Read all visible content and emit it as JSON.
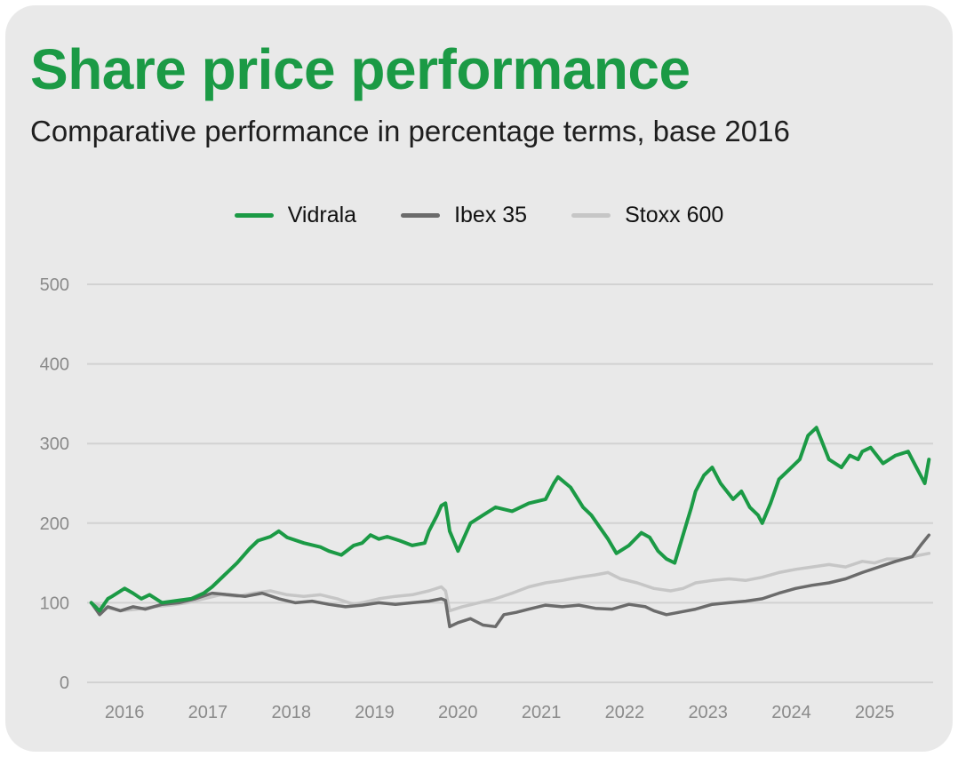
{
  "chart_data": {
    "type": "line",
    "title": "Share price performance",
    "subtitle": "Comparative performance in percentage terms, base 2016",
    "xlabel": "",
    "ylabel": "",
    "ylim": [
      0,
      500
    ],
    "xlim": [
      2015.7,
      2025.85
    ],
    "yticks": [
      0,
      100,
      200,
      300,
      400,
      500
    ],
    "xticks": [
      2016,
      2017,
      2018,
      2019,
      2020,
      2021,
      2022,
      2023,
      2024,
      2025
    ],
    "xtick_labels": [
      "2016",
      "2017",
      "2018",
      "2019",
      "2020",
      "2021",
      "2022",
      "2023",
      "2024",
      "2025"
    ],
    "grid": "horizontal",
    "legend_position": "top-center",
    "series": [
      {
        "name": "Vidrala",
        "color": "#1b9a45",
        "x": [
          2015.75,
          2015.85,
          2015.95,
          2016.0,
          2016.15,
          2016.25,
          2016.35,
          2016.45,
          2016.6,
          2016.8,
          2016.95,
          2017.1,
          2017.2,
          2017.35,
          2017.5,
          2017.65,
          2017.75,
          2017.9,
          2018.0,
          2018.1,
          2018.3,
          2018.5,
          2018.6,
          2018.75,
          2018.9,
          2019.0,
          2019.1,
          2019.2,
          2019.3,
          2019.45,
          2019.6,
          2019.75,
          2019.8,
          2019.9,
          2019.95,
          2020.0,
          2020.05,
          2020.15,
          2020.3,
          2020.45,
          2020.6,
          2020.8,
          2021.0,
          2021.2,
          2021.3,
          2021.35,
          2021.5,
          2021.65,
          2021.75,
          2021.85,
          2021.95,
          2022.05,
          2022.2,
          2022.35,
          2022.45,
          2022.55,
          2022.65,
          2022.75,
          2022.85,
          2022.95,
          2023.0,
          2023.1,
          2023.2,
          2023.3,
          2023.45,
          2023.55,
          2023.65,
          2023.75,
          2023.8,
          2023.9,
          2024.0,
          2024.1,
          2024.15,
          2024.25,
          2024.35,
          2024.45,
          2024.6,
          2024.75,
          2024.85,
          2024.95,
          2025.0,
          2025.1,
          2025.25,
          2025.4,
          2025.55,
          2025.65,
          2025.7,
          2025.75,
          2025.8
        ],
        "values": [
          100,
          90,
          105,
          108,
          118,
          112,
          105,
          110,
          100,
          103,
          105,
          112,
          120,
          135,
          150,
          168,
          178,
          183,
          190,
          182,
          175,
          170,
          165,
          160,
          172,
          175,
          185,
          180,
          183,
          178,
          172,
          175,
          190,
          210,
          222,
          225,
          190,
          165,
          200,
          210,
          220,
          215,
          225,
          230,
          250,
          258,
          245,
          220,
          210,
          195,
          180,
          162,
          172,
          188,
          182,
          165,
          155,
          150,
          185,
          220,
          240,
          260,
          270,
          250,
          230,
          240,
          220,
          210,
          200,
          225,
          255,
          265,
          270,
          280,
          310,
          320,
          280,
          270,
          285,
          280,
          290,
          295,
          275,
          285,
          290,
          270,
          260,
          250,
          280
        ]
      },
      {
        "name": "Ibex 35",
        "color": "#6b6b6b",
        "x": [
          2015.75,
          2015.85,
          2015.95,
          2016.1,
          2016.25,
          2016.4,
          2016.6,
          2016.8,
          2017.0,
          2017.2,
          2017.4,
          2017.6,
          2017.8,
          2018.0,
          2018.2,
          2018.4,
          2018.6,
          2018.8,
          2019.0,
          2019.2,
          2019.4,
          2019.6,
          2019.8,
          2019.95,
          2020.0,
          2020.05,
          2020.15,
          2020.3,
          2020.45,
          2020.6,
          2020.7,
          2020.85,
          2021.0,
          2021.2,
          2021.4,
          2021.6,
          2021.8,
          2022.0,
          2022.2,
          2022.4,
          2022.5,
          2022.65,
          2022.8,
          2023.0,
          2023.2,
          2023.4,
          2023.6,
          2023.8,
          2024.0,
          2024.2,
          2024.4,
          2024.6,
          2024.8,
          2025.0,
          2025.2,
          2025.4,
          2025.6,
          2025.7,
          2025.8
        ],
        "values": [
          100,
          85,
          95,
          90,
          95,
          92,
          98,
          100,
          105,
          112,
          110,
          108,
          112,
          105,
          100,
          102,
          98,
          95,
          97,
          100,
          98,
          100,
          102,
          105,
          103,
          70,
          75,
          80,
          72,
          70,
          85,
          88,
          92,
          97,
          95,
          97,
          93,
          92,
          98,
          95,
          90,
          85,
          88,
          92,
          98,
          100,
          102,
          105,
          112,
          118,
          122,
          125,
          130,
          138,
          145,
          152,
          158,
          172,
          185
        ]
      },
      {
        "name": "Stoxx 600",
        "color": "#c6c6c6",
        "x": [
          2015.75,
          2015.9,
          2016.1,
          2016.3,
          2016.5,
          2016.7,
          2016.9,
          2017.1,
          2017.3,
          2017.5,
          2017.7,
          2017.9,
          2018.1,
          2018.3,
          2018.5,
          2018.7,
          2018.9,
          2019.0,
          2019.2,
          2019.4,
          2019.6,
          2019.8,
          2019.95,
          2020.0,
          2020.05,
          2020.2,
          2020.4,
          2020.6,
          2020.8,
          2021.0,
          2021.2,
          2021.4,
          2021.6,
          2021.8,
          2021.95,
          2022.1,
          2022.3,
          2022.5,
          2022.7,
          2022.85,
          2023.0,
          2023.2,
          2023.4,
          2023.6,
          2023.8,
          2024.0,
          2024.2,
          2024.4,
          2024.6,
          2024.8,
          2025.0,
          2025.15,
          2025.3,
          2025.5,
          2025.7,
          2025.8
        ],
        "values": [
          100,
          95,
          90,
          92,
          95,
          97,
          100,
          105,
          110,
          108,
          112,
          115,
          110,
          108,
          110,
          105,
          98,
          100,
          105,
          108,
          110,
          115,
          120,
          115,
          90,
          95,
          100,
          105,
          112,
          120,
          125,
          128,
          132,
          135,
          138,
          130,
          125,
          118,
          115,
          118,
          125,
          128,
          130,
          128,
          132,
          138,
          142,
          145,
          148,
          145,
          152,
          150,
          155,
          155,
          160,
          162
        ]
      }
    ]
  }
}
